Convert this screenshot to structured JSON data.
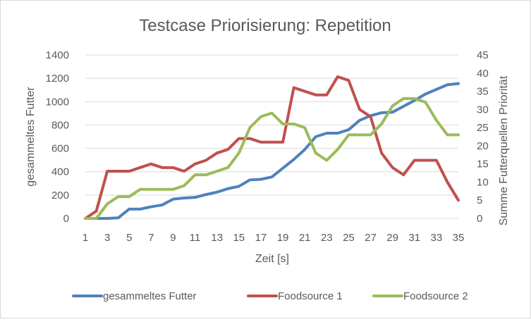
{
  "chart_data": {
    "type": "line",
    "title": "Testcase Priorisierung: Repetition",
    "xlabel": "Zeit [s]",
    "ylabel": "gesammeltes Futter",
    "y2label": "Summe Futterquellen Priorität",
    "ylim": [
      0,
      1400
    ],
    "y2lim": [
      0,
      45
    ],
    "x": [
      1,
      2,
      3,
      4,
      5,
      6,
      7,
      8,
      9,
      10,
      11,
      12,
      13,
      14,
      15,
      16,
      17,
      18,
      19,
      20,
      21,
      22,
      23,
      24,
      25,
      26,
      27,
      28,
      29,
      30,
      31,
      32,
      33,
      34,
      35
    ],
    "x_ticks": [
      1,
      3,
      5,
      7,
      9,
      11,
      13,
      15,
      17,
      19,
      21,
      23,
      25,
      27,
      29,
      31,
      33,
      35
    ],
    "y_ticks": [
      0,
      200,
      400,
      600,
      800,
      1000,
      1200,
      1400
    ],
    "y2_ticks": [
      0,
      5,
      10,
      15,
      20,
      25,
      30,
      35,
      40,
      45
    ],
    "grid": "horizontal",
    "legend_position": "bottom",
    "series": [
      {
        "name": "gesammeltes Futter",
        "axis": "left",
        "color": "#4F81BD",
        "values": [
          0,
          0,
          0,
          5,
          80,
          80,
          100,
          115,
          165,
          175,
          180,
          205,
          225,
          255,
          275,
          330,
          335,
          355,
          430,
          505,
          590,
          700,
          730,
          730,
          760,
          840,
          880,
          905,
          910,
          960,
          1010,
          1065,
          1105,
          1145,
          1155
        ]
      },
      {
        "name": "Foodsource 1",
        "axis": "right",
        "color": "#C0504D",
        "values": [
          0,
          2,
          13,
          13,
          13,
          14,
          15,
          14,
          14,
          13,
          15,
          16,
          18,
          19,
          22,
          22,
          21,
          21,
          21,
          36,
          35,
          34,
          34,
          39,
          38,
          30,
          28,
          18,
          14,
          12,
          16,
          16,
          16,
          10,
          5
        ]
      },
      {
        "name": "Foodsource 2",
        "axis": "right",
        "color": "#9BBB59",
        "values": [
          0,
          0,
          4,
          6,
          6,
          8,
          8,
          8,
          8,
          9,
          12,
          12,
          13,
          14,
          18,
          25,
          28,
          29,
          26,
          26,
          25,
          18,
          16,
          19,
          23,
          23,
          23,
          26,
          31,
          33,
          33,
          32,
          27,
          23,
          23
        ]
      }
    ]
  }
}
